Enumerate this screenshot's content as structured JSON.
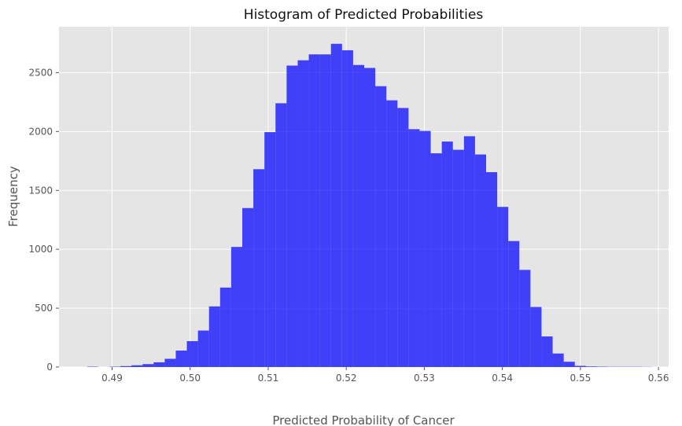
{
  "chart_data": {
    "type": "bar",
    "title": "Histogram of Predicted Probabilities",
    "xlabel": "Predicted Probability of Cancer",
    "ylabel": "Frequency",
    "xlim": [
      0.4832,
      0.5613
    ],
    "ylim": [
      0,
      2890
    ],
    "xticks": [
      "0.49",
      "0.50",
      "0.51",
      "0.52",
      "0.53",
      "0.54",
      "0.55",
      "0.56"
    ],
    "yticks": [
      "0",
      "500",
      "1000",
      "1500",
      "2000",
      "2500"
    ],
    "grid": true,
    "bar_color": "#0000ff",
    "bar_opacity": 0.72,
    "background": "#e5e5e5",
    "bin_edges": [
      0.4868,
      0.48822,
      0.48964,
      0.49106,
      0.49248,
      0.4939,
      0.49532,
      0.49674,
      0.49816,
      0.49958,
      0.501,
      0.50242,
      0.50384,
      0.50526,
      0.50668,
      0.5081,
      0.50952,
      0.51094,
      0.51236,
      0.51378,
      0.5152,
      0.51662,
      0.51804,
      0.51946,
      0.52088,
      0.5223,
      0.52372,
      0.52514,
      0.52656,
      0.52798,
      0.5294,
      0.53082,
      0.53224,
      0.53366,
      0.53508,
      0.5365,
      0.53792,
      0.53934,
      0.54076,
      0.54218,
      0.5436,
      0.54502,
      0.54644,
      0.54786,
      0.54928,
      0.5507,
      0.55212,
      0.55354,
      0.55496,
      0.55638,
      0.5578,
      0.5592
    ],
    "values": [
      3,
      0,
      3,
      8,
      15,
      25,
      40,
      70,
      140,
      220,
      310,
      515,
      675,
      1020,
      1350,
      1680,
      1995,
      2240,
      2560,
      2605,
      2655,
      2655,
      2745,
      2690,
      2565,
      2540,
      2385,
      2265,
      2200,
      2020,
      2005,
      1815,
      1915,
      1845,
      1960,
      1805,
      1655,
      1360,
      1070,
      825,
      510,
      260,
      115,
      45,
      10,
      5,
      3,
      2,
      2,
      2,
      1
    ]
  }
}
